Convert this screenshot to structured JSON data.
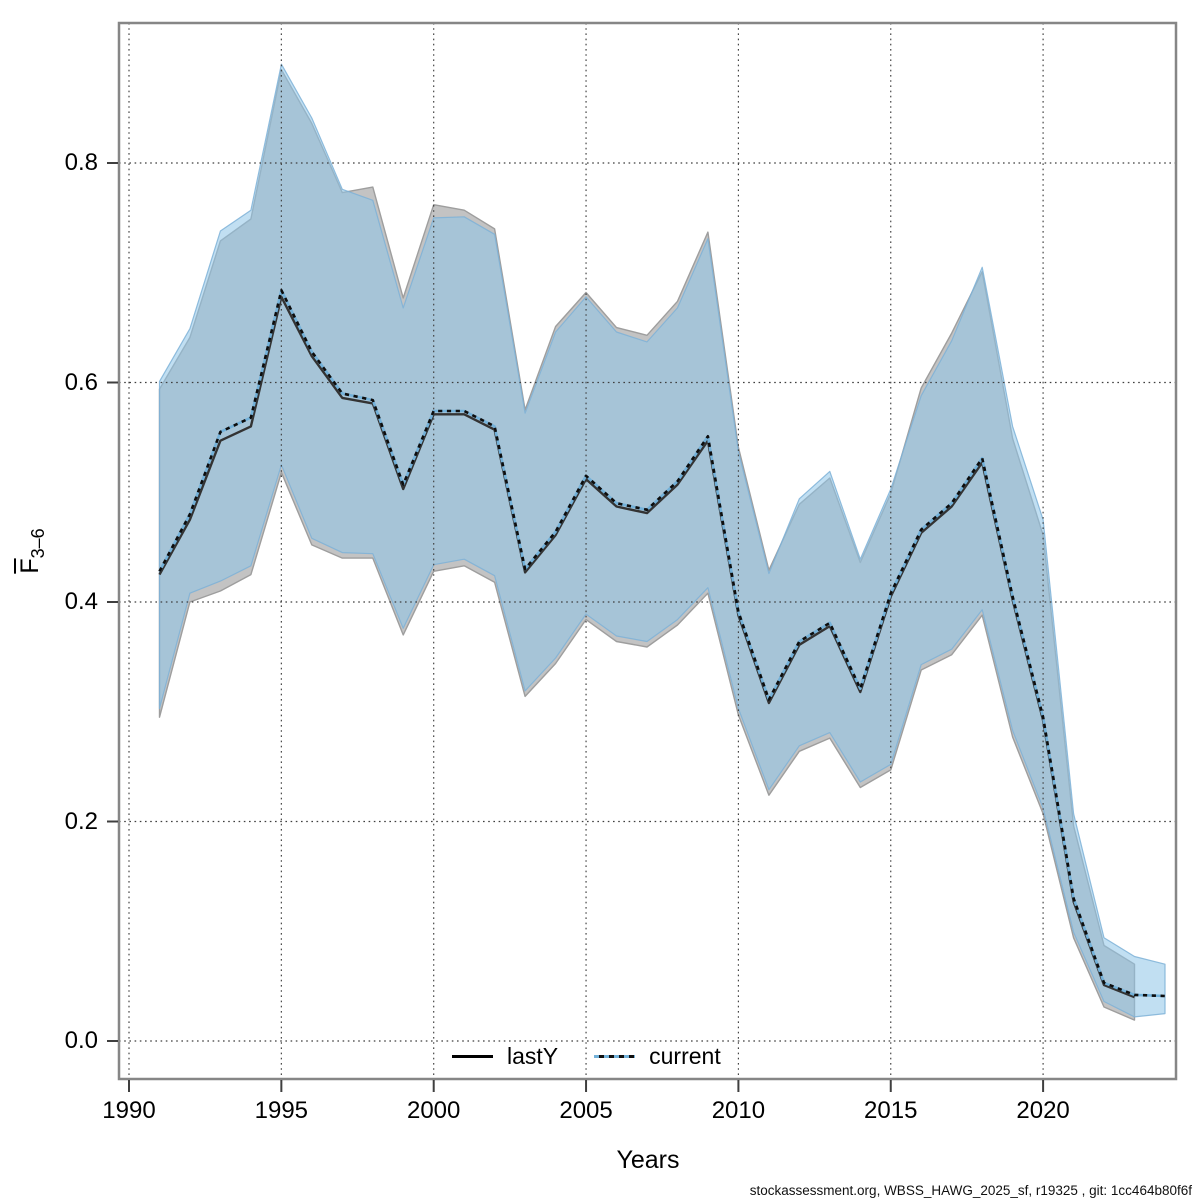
{
  "x_axis": {
    "label": "Years",
    "tick_labels": [
      "1990",
      "1995",
      "2000",
      "2005",
      "2010",
      "2015",
      "2020"
    ],
    "tick_values": [
      1990,
      1995,
      2000,
      2005,
      2010,
      2015,
      2020
    ]
  },
  "y_axis": {
    "label_base": "F",
    "label_sub": "3–6",
    "tick_labels": [
      "0.0",
      "0.2",
      "0.4",
      "0.6",
      "0.8"
    ],
    "tick_values": [
      0.0,
      0.2,
      0.4,
      0.6,
      0.8
    ]
  },
  "legend": {
    "items": [
      {
        "label": "lastY",
        "style": "solid-black"
      },
      {
        "label": "current",
        "style": "dotted-blue"
      }
    ]
  },
  "footer": {
    "text": "stockassessment.org, WBSS_HAWG_2025_sf, r19325 , git: 1cc464b80f6f"
  },
  "colors": {
    "band_lasty_fill": "#c3c3c3",
    "band_lasty_edge": "#9e9e9e",
    "band_current_fill_rgba": "rgba(142,197,231,0.55)",
    "band_current_edge_rgba": "rgba(126,177,215,0.85)",
    "line_lasty": "#333333",
    "line_current_base": "#73b1d9",
    "line_current_dash": "#0d0d0d",
    "grid": "#3f3f3f",
    "box": "#868686",
    "tick": "#3f3f3f"
  },
  "chart_data": {
    "type": "line",
    "title": "",
    "xlabel": "Years",
    "ylabel": "Fbar_3-6",
    "xlim": [
      1989.7,
      2024.4
    ],
    "ylim": [
      -0.035,
      0.928
    ],
    "grid": true,
    "legend_position": "bottom-center",
    "series": [
      {
        "name": "lastY",
        "style": "solid-black-line-with-gray-band",
        "years": [
          1991,
          1992,
          1993,
          1994,
          1995,
          1996,
          1997,
          1998,
          1999,
          2000,
          2001,
          2002,
          2003,
          2004,
          2005,
          2006,
          2007,
          2008,
          2009,
          2010,
          2011,
          2012,
          2013,
          2014,
          2015,
          2016,
          2017,
          2018,
          2019,
          2020,
          2021,
          2022,
          2023
        ],
        "values": [
          0.425,
          0.475,
          0.547,
          0.56,
          0.678,
          0.624,
          0.586,
          0.581,
          0.503,
          0.571,
          0.571,
          0.557,
          0.427,
          0.461,
          0.512,
          0.487,
          0.481,
          0.507,
          0.547,
          0.388,
          0.308,
          0.361,
          0.378,
          0.318,
          0.405,
          0.463,
          0.487,
          0.527,
          0.402,
          0.292,
          0.127,
          0.051,
          0.04
        ],
        "ci_lower": [
          0.295,
          0.4,
          0.41,
          0.425,
          0.518,
          0.452,
          0.44,
          0.44,
          0.37,
          0.428,
          0.433,
          0.418,
          0.314,
          0.344,
          0.384,
          0.364,
          0.359,
          0.379,
          0.408,
          0.297,
          0.224,
          0.264,
          0.276,
          0.231,
          0.247,
          0.338,
          0.352,
          0.388,
          0.277,
          0.207,
          0.094,
          0.031,
          0.019
        ],
        "ci_upper": [
          0.594,
          0.641,
          0.729,
          0.749,
          0.885,
          0.836,
          0.773,
          0.778,
          0.677,
          0.762,
          0.757,
          0.74,
          0.575,
          0.651,
          0.682,
          0.65,
          0.643,
          0.674,
          0.737,
          0.541,
          0.429,
          0.489,
          0.513,
          0.436,
          0.499,
          0.595,
          0.645,
          0.701,
          0.549,
          0.461,
          0.196,
          0.087,
          0.07
        ]
      },
      {
        "name": "current",
        "style": "dotted-blue-line-with-blue-band",
        "years": [
          1991,
          1992,
          1993,
          1994,
          1995,
          1996,
          1997,
          1998,
          1999,
          2000,
          2001,
          2002,
          2003,
          2004,
          2005,
          2006,
          2007,
          2008,
          2009,
          2010,
          2011,
          2012,
          2013,
          2014,
          2015,
          2016,
          2017,
          2018,
          2019,
          2020,
          2021,
          2022,
          2023,
          2024
        ],
        "values": [
          0.428,
          0.48,
          0.555,
          0.568,
          0.684,
          0.628,
          0.59,
          0.584,
          0.507,
          0.574,
          0.574,
          0.56,
          0.43,
          0.464,
          0.515,
          0.49,
          0.484,
          0.51,
          0.551,
          0.391,
          0.311,
          0.364,
          0.381,
          0.321,
          0.408,
          0.466,
          0.49,
          0.531,
          0.405,
          0.295,
          0.13,
          0.053,
          0.042,
          0.041
        ],
        "ci_lower": [
          0.303,
          0.408,
          0.419,
          0.433,
          0.525,
          0.458,
          0.445,
          0.444,
          0.376,
          0.434,
          0.439,
          0.424,
          0.319,
          0.349,
          0.389,
          0.369,
          0.364,
          0.384,
          0.413,
          0.303,
          0.229,
          0.269,
          0.281,
          0.236,
          0.252,
          0.343,
          0.357,
          0.393,
          0.283,
          0.212,
          0.099,
          0.036,
          0.022,
          0.025
        ],
        "ci_upper": [
          0.601,
          0.649,
          0.738,
          0.757,
          0.89,
          0.841,
          0.776,
          0.766,
          0.668,
          0.75,
          0.751,
          0.735,
          0.572,
          0.646,
          0.678,
          0.646,
          0.637,
          0.668,
          0.731,
          0.537,
          0.426,
          0.494,
          0.519,
          0.439,
          0.503,
          0.588,
          0.638,
          0.705,
          0.56,
          0.475,
          0.207,
          0.094,
          0.077,
          0.07
        ]
      }
    ]
  }
}
